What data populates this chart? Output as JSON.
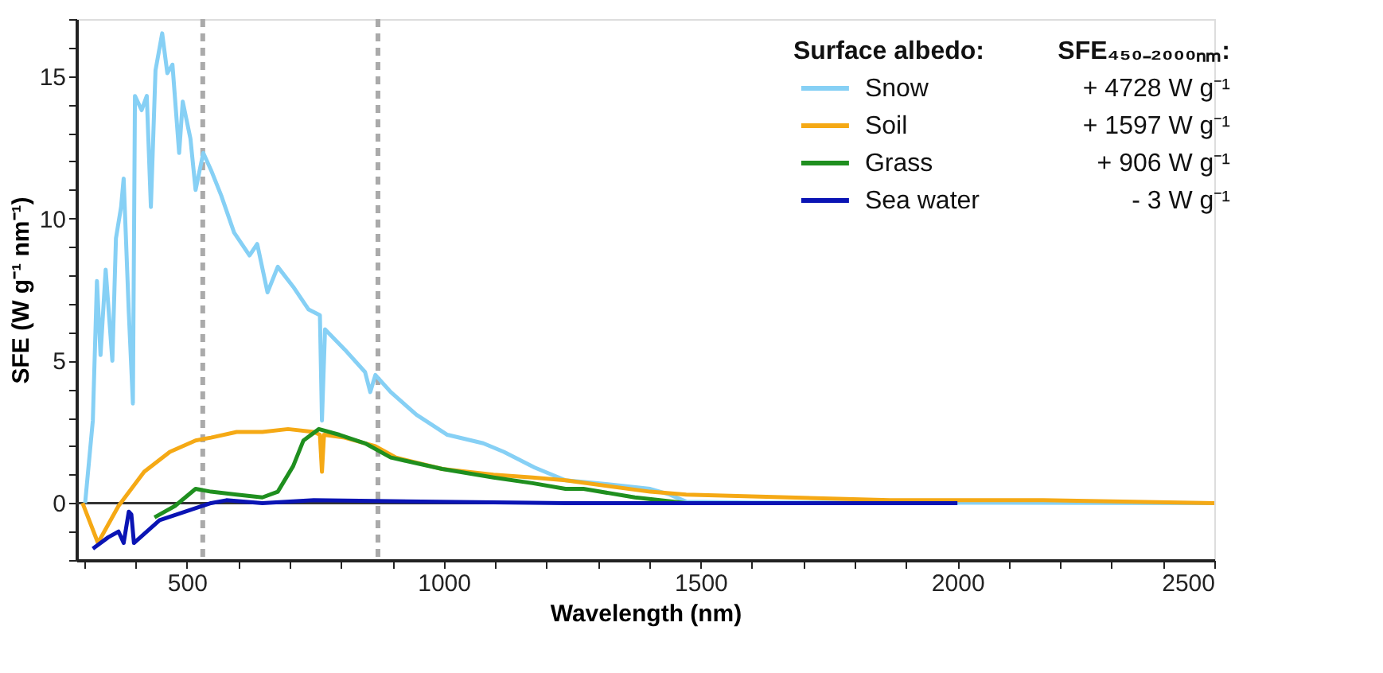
{
  "chart_data": {
    "type": "line",
    "xlabel": "Wavelength (nm)",
    "ylabel": "SFE (W g⁻¹ nm⁻¹)",
    "legend_title": "Surface albedo:",
    "xlim": [
      285,
      2500
    ],
    "ylim": [
      -2,
      17
    ],
    "xticks": [
      {
        "value": 300,
        "label": null
      },
      {
        "value": 400,
        "label": null
      },
      500,
      {
        "value": 600,
        "label": null
      },
      {
        "value": 700,
        "label": null
      },
      {
        "value": 800,
        "label": null
      },
      {
        "value": 900,
        "label": null
      },
      1000,
      {
        "value": 1100,
        "label": null
      },
      {
        "value": 1200,
        "label": null
      },
      {
        "value": 1300,
        "label": null
      },
      {
        "value": 1400,
        "label": null
      },
      1500,
      {
        "value": 1600,
        "label": null
      },
      {
        "value": 1700,
        "label": null
      },
      {
        "value": 1800,
        "label": null
      },
      {
        "value": 1900,
        "label": null
      },
      2000,
      {
        "value": 2100,
        "label": null
      },
      {
        "value": 2200,
        "label": null
      },
      {
        "value": 2300,
        "label": null
      },
      {
        "value": 2400,
        "label": null
      },
      2500
    ],
    "yticks": [
      {
        "value": -2,
        "label": null
      },
      {
        "value": -1,
        "label": null
      },
      0,
      {
        "value": 1,
        "label": null
      },
      {
        "value": 2,
        "label": null
      },
      {
        "value": 3,
        "label": null
      },
      {
        "value": 4,
        "label": null
      },
      5,
      {
        "value": 6,
        "label": null
      },
      {
        "value": 7,
        "label": null
      },
      {
        "value": 8,
        "label": null
      },
      {
        "value": 9,
        "label": null
      },
      10,
      {
        "value": 11,
        "label": null
      },
      {
        "value": 12,
        "label": null
      },
      {
        "value": 13,
        "label": null
      },
      {
        "value": 14,
        "label": null
      },
      15,
      {
        "value": 16,
        "label": null
      },
      {
        "value": 17,
        "label": null
      }
    ],
    "grid": false,
    "legend": "top right",
    "line_style": "solid",
    "marker": "none",
    "ref_lines": [
      {
        "axis": "y",
        "value": 0,
        "color": "#333333",
        "line_style": "solid"
      },
      {
        "axis": "x",
        "value": 531,
        "color": "#aaaaaa",
        "line_style": "dashed"
      },
      {
        "axis": "x",
        "value": 872,
        "color": "#aaaaaa",
        "line_style": "dashed"
      }
    ],
    "annotations": [
      "SFE₄₅₀₋₂₀₀₀ₙₘ:",
      "+ 4728 W g⁻¹",
      "+ 1597 W g⁻¹",
      "+ 906 W g⁻¹",
      "- 3 W g⁻¹"
    ],
    "series": [
      {
        "name": "Snow",
        "color": "#86d0f5",
        "x": [
          302,
          317,
          325,
          332,
          342,
          355,
          362,
          372,
          377,
          387,
          395,
          399,
          412,
          422,
          430,
          439,
          452,
          462,
          472,
          485,
          492,
          507,
          517,
          532,
          547,
          567,
          592,
          622,
          637,
          657,
          677,
          707,
          737,
          759,
          763,
          769,
          807,
          847,
          857,
          867,
          897,
          947,
          1007,
          1077,
          1117,
          1177,
          1237,
          1300,
          1402,
          1440,
          1472,
          1600,
          2500
        ],
        "values": [
          0,
          2.9,
          7.8,
          5.2,
          8.2,
          5.0,
          9.3,
          10.4,
          11.4,
          6.7,
          3.5,
          14.3,
          13.8,
          14.3,
          10.4,
          15.2,
          16.5,
          15.1,
          15.4,
          12.3,
          14.1,
          12.8,
          11.0,
          12.3,
          11.7,
          10.8,
          9.5,
          8.7,
          9.1,
          7.4,
          8.3,
          7.6,
          6.8,
          6.6,
          2.9,
          6.1,
          5.4,
          4.6,
          3.9,
          4.5,
          3.9,
          3.1,
          2.4,
          2.1,
          1.8,
          1.25,
          0.8,
          0.7,
          0.5,
          0.3,
          0.05,
          0.02,
          0
        ]
      },
      {
        "name": "Soil",
        "color": "#f5a915",
        "x": [
          297,
          327,
          367,
          417,
          467,
          517,
          547,
          597,
          647,
          697,
          747,
          759,
          763,
          767,
          807,
          867,
          907,
          997,
          1097,
          1173,
          1237,
          1402,
          1472,
          1671,
          1869,
          2167,
          2500
        ],
        "values": [
          0,
          -1.4,
          -0.1,
          1.1,
          1.8,
          2.2,
          2.3,
          2.5,
          2.5,
          2.6,
          2.5,
          2.4,
          1.1,
          2.4,
          2.3,
          2.0,
          1.6,
          1.2,
          1.0,
          0.9,
          0.8,
          0.4,
          0.3,
          0.2,
          0.1,
          0.1,
          0
        ]
      },
      {
        "name": "Grass",
        "color": "#1f8f1f",
        "x": [
          437,
          477,
          517,
          547,
          597,
          647,
          677,
          707,
          727,
          757,
          797,
          847,
          897,
          997,
          1097,
          1173,
          1237,
          1272,
          1372,
          1421,
          1472,
          1700
        ],
        "values": [
          -0.5,
          -0.1,
          0.5,
          0.4,
          0.3,
          0.2,
          0.4,
          1.3,
          2.2,
          2.6,
          2.4,
          2.1,
          1.6,
          1.2,
          0.9,
          0.7,
          0.5,
          0.5,
          0.2,
          0.1,
          0,
          0
        ]
      },
      {
        "name": "Sea water",
        "color": "#0a14b4",
        "x": [
          317,
          347,
          367,
          377,
          387,
          392,
          397,
          447,
          497,
          547,
          577,
          647,
          747,
          1237,
          2000
        ],
        "values": [
          -1.6,
          -1.2,
          -1.0,
          -1.4,
          -0.3,
          -0.4,
          -1.4,
          -0.6,
          -0.3,
          0,
          0.1,
          0,
          0.1,
          0,
          0
        ]
      }
    ]
  }
}
